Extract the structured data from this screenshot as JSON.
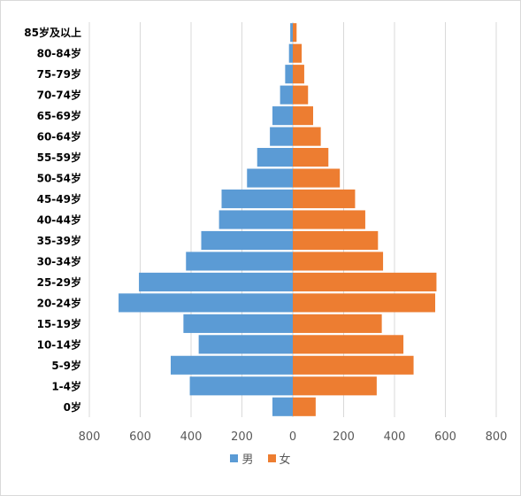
{
  "chart_data": {
    "type": "bar",
    "orientation": "horizontal",
    "layout": "population-pyramid",
    "categories": [
      "0岁",
      "1-4岁",
      "5-9岁",
      "10-14岁",
      "15-19岁",
      "20-24岁",
      "25-29岁",
      "30-34岁",
      "35-39岁",
      "40-44岁",
      "45-49岁",
      "50-54岁",
      "55-59岁",
      "60-64岁",
      "65-69岁",
      "70-74岁",
      "75-79岁",
      "80-84岁",
      "85岁及以上"
    ],
    "series": [
      {
        "name": "男",
        "color": "#5b9bd5",
        "side": "left",
        "values": [
          80,
          405,
          480,
          370,
          430,
          685,
          605,
          420,
          360,
          290,
          280,
          180,
          140,
          90,
          80,
          50,
          30,
          15,
          10
        ]
      },
      {
        "name": "女",
        "color": "#ed7d31",
        "side": "right",
        "values": [
          90,
          330,
          475,
          435,
          350,
          560,
          565,
          355,
          335,
          285,
          245,
          185,
          140,
          110,
          80,
          60,
          45,
          35,
          15
        ]
      }
    ],
    "xlim": [
      -800,
      800
    ],
    "x_ticks": [
      -800,
      -600,
      -400,
      -200,
      0,
      200,
      400,
      600,
      800
    ],
    "x_tick_labels": [
      "800",
      "600",
      "400",
      "200",
      "0",
      "200",
      "400",
      "600",
      "800"
    ],
    "grid": "vertical",
    "legend": "bottom-center",
    "title": "",
    "xlabel": "",
    "ylabel": ""
  },
  "legend": {
    "items": [
      {
        "label": "男",
        "color": "#5b9bd5"
      },
      {
        "label": "女",
        "color": "#ed7d31"
      }
    ]
  }
}
